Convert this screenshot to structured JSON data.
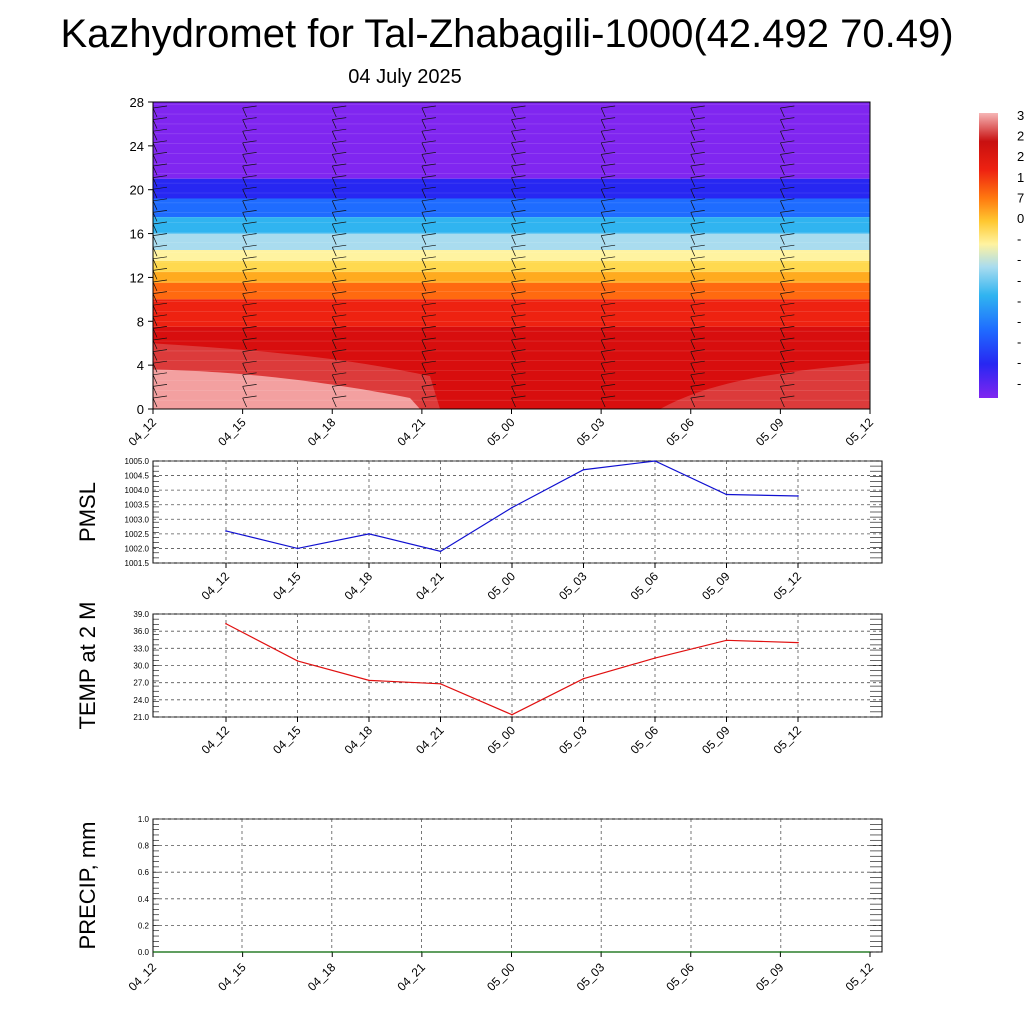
{
  "title": "Kazhydromet for Tal-Zhabagili-1000(42.492 70.49)",
  "subtitle": "04 July 2025",
  "colors": {
    "pmsl_line": "#1010d0",
    "temp_line": "#e01010",
    "precip_line": "#006400",
    "grid": "#555555"
  },
  "colorbar": {
    "visible_labels": [
      "3",
      "2",
      "2",
      "1",
      "7",
      "0",
      "-",
      "-",
      "-",
      "-",
      "-",
      "-",
      "-",
      "-"
    ]
  },
  "chart_data": [
    {
      "id": "cross_section",
      "type": "heatmap",
      "x": [
        "04_12",
        "04_15",
        "04_18",
        "04_21",
        "05_00",
        "05_03",
        "05_06",
        "05_09",
        "05_12"
      ],
      "yticks": [
        "0",
        "4",
        "8",
        "12",
        "16",
        "20",
        "24",
        "28"
      ],
      "ylim": [
        0,
        28
      ],
      "ylabel": "",
      "palette": [
        "#8a2be2",
        "#3333ff",
        "#2060ff",
        "#29b6f6",
        "#a8dcf0",
        "#fff59d",
        "#ffd54f",
        "#ff9800",
        "#f44336",
        "#d50000",
        "#c62828",
        "#e57373",
        "#f8b4b4"
      ],
      "bands": [
        {
          "from": 21.0,
          "to": 28.0,
          "color": "#8026f0"
        },
        {
          "from": 19.2,
          "to": 21.0,
          "color": "#2727f2"
        },
        {
          "from": 17.5,
          "to": 19.2,
          "color": "#1f6cff"
        },
        {
          "from": 16.0,
          "to": 17.5,
          "color": "#30b4f0"
        },
        {
          "from": 14.5,
          "to": 16.0,
          "color": "#a9dcef"
        },
        {
          "from": 13.5,
          "to": 14.5,
          "color": "#fff3a0"
        },
        {
          "from": 12.5,
          "to": 13.5,
          "color": "#ffd94f"
        },
        {
          "from": 11.5,
          "to": 12.5,
          "color": "#ffab1f"
        },
        {
          "from": 10.0,
          "to": 11.5,
          "color": "#ff6a10"
        },
        {
          "from": 7.5,
          "to": 10.0,
          "color": "#ee2211"
        },
        {
          "from": 0.0,
          "to": 7.5,
          "color": "#d80e0e"
        }
      ],
      "wind_barbs": true
    },
    {
      "id": "pmsl",
      "type": "line",
      "ylabel": "PMSL",
      "x": [
        "04_12",
        "04_15",
        "04_18",
        "04_21",
        "05_00",
        "05_03",
        "05_06",
        "05_09",
        "05_12"
      ],
      "series": [
        {
          "values": [
            1002.6,
            1002.0,
            1002.5,
            1001.9,
            1003.4,
            1004.7,
            1005.0,
            1003.85,
            1003.8
          ]
        }
      ],
      "yticks": [
        "1001.5",
        "1002.0",
        "1002.5",
        "1003.0",
        "1003.5",
        "1004.0",
        "1004.5",
        "1005.0"
      ],
      "ylim": [
        1001.5,
        1005.0
      ],
      "grid": true
    },
    {
      "id": "temp",
      "type": "line",
      "ylabel": "TEMP at 2 M",
      "x": [
        "04_12",
        "04_15",
        "04_18",
        "04_21",
        "05_00",
        "05_03",
        "05_06",
        "05_09",
        "05_12"
      ],
      "series": [
        {
          "values": [
            37.3,
            30.8,
            27.4,
            26.8,
            21.4,
            27.7,
            31.3,
            34.4,
            34.0
          ]
        }
      ],
      "yticks": [
        "21.0",
        "24.0",
        "27.0",
        "30.0",
        "33.0",
        "36.0",
        "39.0"
      ],
      "ylim": [
        21.0,
        39.0
      ],
      "grid": true
    },
    {
      "id": "precip",
      "type": "line",
      "ylabel": "PRECIP, mm",
      "x": [
        "04_12",
        "04_15",
        "04_18",
        "04_21",
        "05_00",
        "05_03",
        "05_06",
        "05_09",
        "05_12"
      ],
      "series": [
        {
          "values": [
            0,
            0,
            0,
            0,
            0,
            0,
            0,
            0,
            0
          ]
        }
      ],
      "yticks": [
        "0.0",
        "0.2",
        "0.4",
        "0.6",
        "0.8",
        "1.0"
      ],
      "ylim": [
        0.0,
        1.0
      ],
      "grid": true
    }
  ]
}
